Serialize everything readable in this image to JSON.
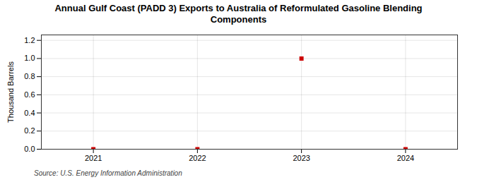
{
  "chart_data": {
    "type": "scatter",
    "title": "Annual Gulf Coast (PADD 3) Exports to Australia of Reformulated Gasoline Blending\nComponents",
    "y_label": "Thousand Barrels",
    "source": "Source: U.S. Energy Information Administration",
    "x": [
      2021,
      2022,
      2023,
      2024
    ],
    "values": [
      0,
      0,
      1.0,
      0
    ],
    "color": "#cc0000",
    "marker": "square",
    "xlim": [
      2020.5,
      2024.5
    ],
    "xticks": [
      2021,
      2022,
      2023,
      2024
    ],
    "ylim": [
      0.0,
      1.26
    ],
    "yticks": [
      {
        "value": 0.0,
        "label": "0.0"
      },
      0.2,
      0.4,
      0.6,
      0.8,
      {
        "value": 1.0,
        "label": "1.0"
      },
      1.2
    ],
    "grid": true
  }
}
